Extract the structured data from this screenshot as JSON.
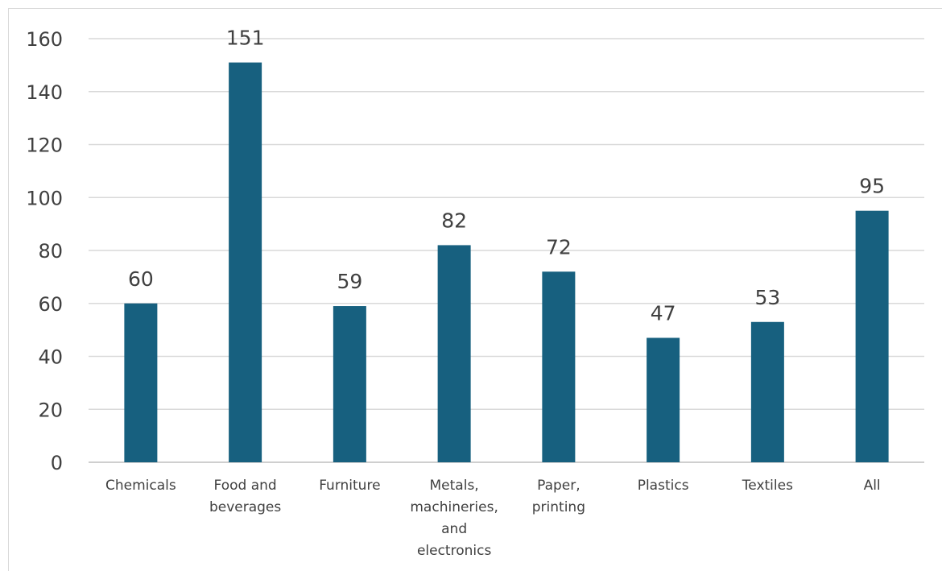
{
  "chart_data": {
    "type": "bar",
    "title": "",
    "xlabel": "",
    "ylabel": "",
    "categories": [
      [
        "Chemicals"
      ],
      [
        "Food and",
        "beverages"
      ],
      [
        "Furniture"
      ],
      [
        "Metals,",
        "machineries,",
        "and",
        "electronics"
      ],
      [
        "Paper,",
        "printing"
      ],
      [
        "Plastics"
      ],
      [
        "Textiles"
      ],
      [
        "All"
      ]
    ],
    "values": [
      60,
      151,
      59,
      82,
      72,
      47,
      53,
      95
    ],
    "ylim": [
      0,
      160
    ],
    "yticks": [
      0,
      20,
      40,
      60,
      80,
      100,
      120,
      140,
      160
    ],
    "grid": true,
    "legend": "none",
    "bar_color": "#17607f"
  }
}
